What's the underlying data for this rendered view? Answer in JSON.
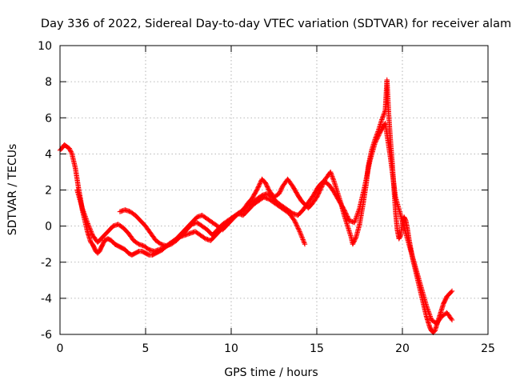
{
  "chart_data": {
    "type": "scatter",
    "title": "Day 336 of 2022, Sidereal Day-to-day VTEC variation (SDTVAR) for receiver alam",
    "xlabel": "GPS time / hours",
    "ylabel": "SDTVAR / TECUs",
    "xlim": [
      0,
      25
    ],
    "ylim": [
      -6,
      10
    ],
    "xticks": [
      0,
      5,
      10,
      15,
      20,
      25
    ],
    "yticks": [
      -6,
      -4,
      -2,
      0,
      2,
      4,
      6,
      8,
      10
    ],
    "grid": true,
    "marker": "+",
    "series": [
      {
        "name": "SDTVAR",
        "color": "#ff0000",
        "x": [
          0.0,
          0.1,
          0.25,
          0.4,
          0.55,
          0.7,
          0.8,
          0.9,
          1.0,
          1.1,
          1.2,
          1.3,
          1.4,
          1.5,
          1.6,
          1.7,
          1.8,
          1.9,
          2.0,
          2.1,
          2.2,
          2.3,
          2.4,
          2.5,
          2.6,
          2.8,
          3.0,
          3.2,
          3.4,
          3.6,
          3.8,
          4.0,
          4.2,
          4.4,
          4.6,
          4.8,
          5.0,
          5.2,
          5.4,
          5.6,
          5.8,
          6.0,
          6.2,
          6.5,
          6.8,
          7.0,
          7.2,
          7.5,
          7.8,
          8.0,
          8.3,
          8.6,
          8.9,
          9.2,
          9.5,
          9.8,
          10.1,
          10.4,
          10.7,
          11.0,
          11.2,
          11.5,
          11.8,
          12.0,
          12.2,
          12.5,
          12.8,
          13.0,
          13.3,
          13.6,
          13.9,
          14.1,
          14.3,
          14.5,
          14.7,
          15.0,
          15.2,
          15.5,
          15.8,
          16.0,
          16.2,
          16.4,
          16.6,
          16.8,
          17.0,
          17.1,
          17.3,
          17.5,
          17.7,
          17.9,
          18.0,
          18.2,
          18.4,
          18.6,
          18.8,
          19.0,
          19.1,
          19.2,
          19.3,
          19.4,
          19.5,
          19.6,
          19.7,
          19.8,
          19.9,
          20.0,
          20.1,
          20.2,
          20.3,
          20.4,
          20.5,
          20.6,
          20.7,
          20.8,
          20.9,
          21.0,
          21.1,
          21.2,
          21.3,
          21.4,
          21.5,
          21.6,
          21.7,
          21.8,
          21.9,
          22.0,
          22.1,
          22.2,
          22.3,
          22.4,
          22.5,
          22.6,
          22.7,
          22.8,
          22.9
        ],
        "y": [
          4.2,
          4.3,
          4.5,
          4.4,
          4.3,
          4.0,
          3.6,
          3.2,
          2.6,
          2.0,
          1.5,
          0.9,
          0.5,
          0.1,
          -0.3,
          -0.6,
          -0.9,
          -1.0,
          -1.2,
          -1.4,
          -1.5,
          -1.4,
          -1.2,
          -1.0,
          -0.8,
          -0.7,
          -0.8,
          -1.0,
          -1.1,
          -1.2,
          -1.3,
          -1.5,
          -1.6,
          -1.5,
          -1.4,
          -1.4,
          -1.5,
          -1.6,
          -1.6,
          -1.5,
          -1.4,
          -1.3,
          -1.1,
          -0.9,
          -0.7,
          -0.5,
          -0.3,
          0.0,
          0.3,
          0.5,
          0.6,
          0.4,
          0.2,
          0.0,
          -0.2,
          0.1,
          0.4,
          0.7,
          0.9,
          1.3,
          1.5,
          2.0,
          2.6,
          2.4,
          2.0,
          1.6,
          1.8,
          2.2,
          2.6,
          2.2,
          1.7,
          1.4,
          1.2,
          1.0,
          1.2,
          1.6,
          2.0,
          2.6,
          3.0,
          2.5,
          1.9,
          1.3,
          0.6,
          0.0,
          -0.6,
          -1.0,
          -0.6,
          0.1,
          1.2,
          2.4,
          3.3,
          4.2,
          4.8,
          5.3,
          5.9,
          6.4,
          8.1,
          6.2,
          4.8,
          3.6,
          2.2,
          0.8,
          -0.2,
          -0.7,
          -0.5,
          0.2,
          0.5,
          0.3,
          -0.2,
          -0.8,
          -1.3,
          -1.8,
          -2.2,
          -2.6,
          -3.0,
          -3.4,
          -3.8,
          -4.2,
          -4.6,
          -5.0,
          -5.3,
          -5.6,
          -5.8,
          -5.9,
          -5.8,
          -5.5,
          -5.2,
          -4.9,
          -4.6,
          -4.3,
          -4.1,
          -3.9,
          -3.8,
          -3.7,
          -3.6
        ]
      },
      {
        "name": "SDTVAR (overlap)",
        "color": "#ff0000",
        "x": [
          1.0,
          1.3,
          1.6,
          1.9,
          2.2,
          2.5,
          2.8,
          3.1,
          3.4,
          3.7,
          4.0,
          4.3,
          4.6,
          4.9,
          5.2,
          5.5,
          5.8,
          6.1,
          6.4,
          6.7,
          7.0,
          7.3,
          7.6,
          7.9,
          8.2,
          8.5,
          8.8,
          9.1,
          9.4,
          9.7,
          10.0,
          10.3,
          10.6,
          10.9,
          11.2,
          11.5,
          11.8,
          12.1,
          12.4,
          12.7,
          13.0,
          13.3,
          13.6,
          13.9,
          14.2,
          14.5,
          14.8,
          15.1,
          15.4,
          15.7,
          16.0,
          16.3,
          16.6,
          16.9,
          17.2,
          17.5,
          17.8,
          18.1,
          18.4,
          18.7,
          19.0,
          19.3,
          19.6,
          19.9,
          20.2,
          20.5,
          20.8,
          21.1,
          21.4,
          21.7,
          22.0,
          22.3,
          22.6,
          22.9
        ],
        "y": [
          2.0,
          1.0,
          0.2,
          -0.5,
          -0.9,
          -0.6,
          -0.3,
          0.0,
          0.1,
          -0.1,
          -0.4,
          -0.8,
          -1.0,
          -1.1,
          -1.3,
          -1.4,
          -1.3,
          -1.2,
          -1.0,
          -0.8,
          -0.6,
          -0.5,
          -0.4,
          -0.3,
          -0.5,
          -0.7,
          -0.8,
          -0.5,
          -0.2,
          0.1,
          0.4,
          0.6,
          0.8,
          1.1,
          1.3,
          1.5,
          1.7,
          1.8,
          1.6,
          1.3,
          1.1,
          0.9,
          0.7,
          0.6,
          0.9,
          1.3,
          1.7,
          2.2,
          2.5,
          2.3,
          1.9,
          1.4,
          0.9,
          0.3,
          0.2,
          1.0,
          2.2,
          3.6,
          4.6,
          5.2,
          5.7,
          3.8,
          1.6,
          0.6,
          -0.4,
          -1.4,
          -2.4,
          -3.4,
          -4.4,
          -5.2,
          -5.4,
          -5.0,
          -4.8,
          -5.2
        ]
      },
      {
        "name": "SDTVAR (overlap 2)",
        "color": "#ff0000",
        "x": [
          3.5,
          3.8,
          4.1,
          4.4,
          4.7,
          5.0,
          5.3,
          5.6,
          5.9,
          6.2,
          6.5,
          6.8,
          7.1,
          7.4,
          7.7,
          8.0,
          8.3,
          8.6,
          8.9,
          9.2,
          9.5,
          9.8,
          10.1,
          10.4,
          10.7,
          11.0,
          11.3,
          11.6,
          11.9,
          12.2,
          12.5,
          12.8,
          13.1,
          13.4,
          13.7,
          14.0,
          14.3
        ],
        "y": [
          0.8,
          0.9,
          0.8,
          0.6,
          0.3,
          0.0,
          -0.4,
          -0.8,
          -1.0,
          -1.1,
          -1.0,
          -0.8,
          -0.5,
          -0.2,
          0.1,
          0.2,
          0.0,
          -0.2,
          -0.5,
          -0.2,
          0.1,
          0.3,
          0.5,
          0.7,
          0.6,
          0.9,
          1.2,
          1.4,
          1.6,
          1.5,
          1.3,
          1.1,
          0.9,
          0.7,
          0.3,
          -0.3,
          -1.0
        ]
      }
    ]
  }
}
